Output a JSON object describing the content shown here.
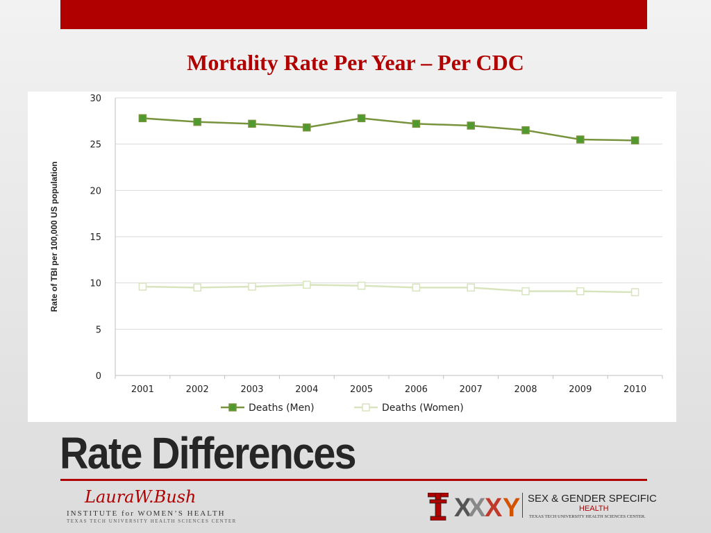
{
  "slide": {
    "title": "Mortality Rate Per Year – Per CDC",
    "heading": "Rate Differences"
  },
  "logos": {
    "left": {
      "name": "LauraW.Bush",
      "line1": "INSTITUTE for WOMEN’S HEALTH",
      "line2": "TEXAS TECH UNIVERSITY HEALTH SCIENCES CENTER"
    },
    "right": {
      "title": "SEX & GENDER SPECIFIC",
      "subtitle": "HEALTH",
      "org": "TEXAS TECH UNIVERSITY HEALTH SCIENCES CENTER."
    }
  },
  "colors": {
    "accent": "#b00000",
    "men_line": "#77933c",
    "men_marker": "#4f9a2e",
    "women_line": "#d7e4bd",
    "grid": "#d9d9d9"
  },
  "chart_data": {
    "type": "line",
    "title": "",
    "xlabel": "",
    "ylabel": "Rate of TBI per 100,000 US population",
    "categories": [
      "2001",
      "2002",
      "2003",
      "2004",
      "2005",
      "2006",
      "2007",
      "2008",
      "2009",
      "2010"
    ],
    "ylim": [
      0,
      30
    ],
    "yticks": [
      "0",
      "5",
      "10",
      "15",
      "20",
      "25",
      "30"
    ],
    "grid": true,
    "legend_position": "bottom",
    "series": [
      {
        "name": "Deaths (Men)",
        "values": [
          27.8,
          27.4,
          27.2,
          26.8,
          27.8,
          27.2,
          27.0,
          26.5,
          25.5,
          25.4
        ]
      },
      {
        "name": "Deaths (Women)",
        "values": [
          9.6,
          9.5,
          9.6,
          9.8,
          9.7,
          9.5,
          9.5,
          9.1,
          9.1,
          9.0
        ]
      }
    ]
  }
}
